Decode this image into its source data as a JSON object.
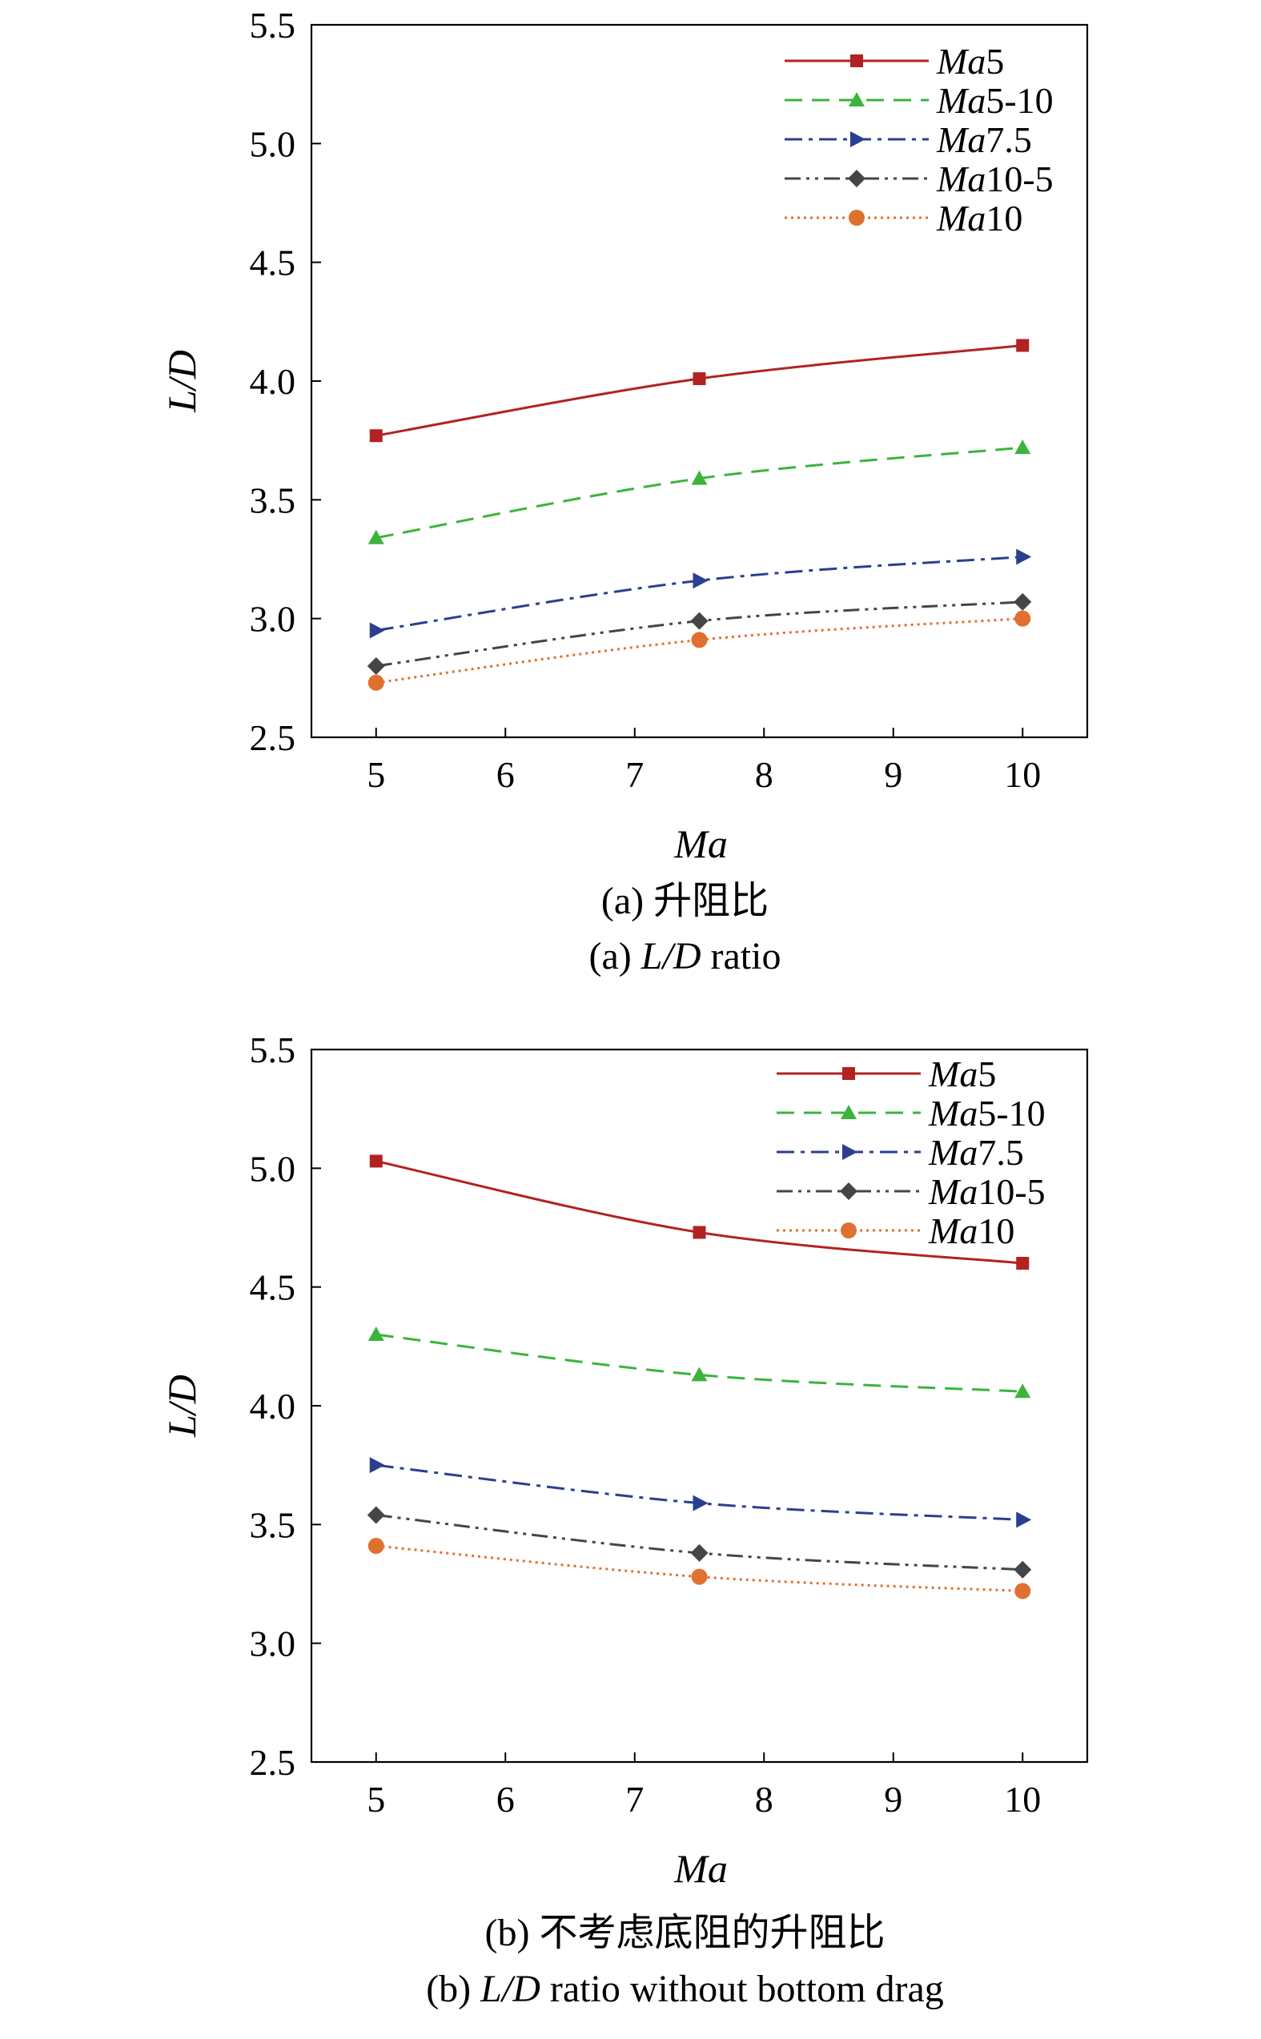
{
  "chart_data": [
    {
      "type": "line",
      "id": "a",
      "x": [
        5,
        7.5,
        10
      ],
      "series": [
        {
          "name": "Ma5",
          "name_parts": [
            "Ma",
            "5"
          ],
          "color": "#b22222",
          "dash": "solid",
          "marker": "square",
          "values": [
            3.77,
            4.01,
            4.15
          ]
        },
        {
          "name": "Ma5-10",
          "name_parts": [
            "Ma",
            "5-10"
          ],
          "color": "#3cb43c",
          "dash": "dashed",
          "marker": "triangle-up",
          "values": [
            3.34,
            3.59,
            3.72
          ]
        },
        {
          "name": "Ma7.5",
          "name_parts": [
            "Ma",
            "7.5"
          ],
          "color": "#2b3f8f",
          "dash": "dash-dot",
          "marker": "triangle-right",
          "values": [
            2.95,
            3.16,
            3.26
          ]
        },
        {
          "name": "Ma10-5",
          "name_parts": [
            "Ma",
            "10-5"
          ],
          "color": "#454545",
          "dash": "dash-dot-dot",
          "marker": "diamond",
          "values": [
            2.8,
            2.99,
            3.07
          ]
        },
        {
          "name": "Ma10",
          "name_parts": [
            "Ma",
            "10"
          ],
          "color": "#e07030",
          "dash": "dotted",
          "marker": "circle",
          "values": [
            2.73,
            2.91,
            3.0
          ]
        }
      ],
      "xlabel": "Ma",
      "ylabel_parts": [
        "L",
        "/",
        "D"
      ],
      "xlim": [
        4.5,
        10.5
      ],
      "ylim": [
        2.5,
        5.5
      ],
      "xticks": [
        "5",
        "6",
        "7",
        "8",
        "9",
        "10"
      ],
      "yticks": [
        "2.5",
        "3.0",
        "3.5",
        "4.0",
        "4.5",
        "5.0",
        "5.5"
      ],
      "legend": "top-right",
      "grid": false,
      "caption_cn": "(a) 升阻比",
      "caption_en_parts": [
        "(a) ",
        "L",
        "/",
        "D",
        " ratio"
      ]
    },
    {
      "type": "line",
      "id": "b",
      "x": [
        5,
        7.5,
        10
      ],
      "series": [
        {
          "name": "Ma5",
          "name_parts": [
            "Ma",
            "5"
          ],
          "color": "#b22222",
          "dash": "solid",
          "marker": "square",
          "values": [
            5.03,
            4.73,
            4.6
          ]
        },
        {
          "name": "Ma5-10",
          "name_parts": [
            "Ma",
            "5-10"
          ],
          "color": "#3cb43c",
          "dash": "dashed",
          "marker": "triangle-up",
          "values": [
            4.3,
            4.13,
            4.06
          ]
        },
        {
          "name": "Ma7.5",
          "name_parts": [
            "Ma",
            "7.5"
          ],
          "color": "#2b3f8f",
          "dash": "dash-dot",
          "marker": "triangle-right",
          "values": [
            3.75,
            3.59,
            3.52
          ]
        },
        {
          "name": "Ma10-5",
          "name_parts": [
            "Ma",
            "10-5"
          ],
          "color": "#454545",
          "dash": "dash-dot-dot",
          "marker": "diamond",
          "values": [
            3.54,
            3.38,
            3.31
          ]
        },
        {
          "name": "Ma10",
          "name_parts": [
            "Ma",
            "10"
          ],
          "color": "#e07030",
          "dash": "dotted",
          "marker": "circle",
          "values": [
            3.41,
            3.28,
            3.22
          ]
        }
      ],
      "xlabel": "Ma",
      "ylabel_parts": [
        "L",
        "/",
        "D"
      ],
      "xlim": [
        4.5,
        10.5
      ],
      "ylim": [
        2.5,
        5.5
      ],
      "xticks": [
        "5",
        "6",
        "7",
        "8",
        "9",
        "10"
      ],
      "yticks": [
        "2.5",
        "3.0",
        "3.5",
        "4.0",
        "4.5",
        "5.0",
        "5.5"
      ],
      "legend": "top-right",
      "grid": false,
      "caption_cn": "(b) 不考虑底阻的升阻比",
      "caption_en_parts": [
        "(b) ",
        "L",
        "/",
        "D",
        " ratio without bottom drag"
      ]
    }
  ]
}
